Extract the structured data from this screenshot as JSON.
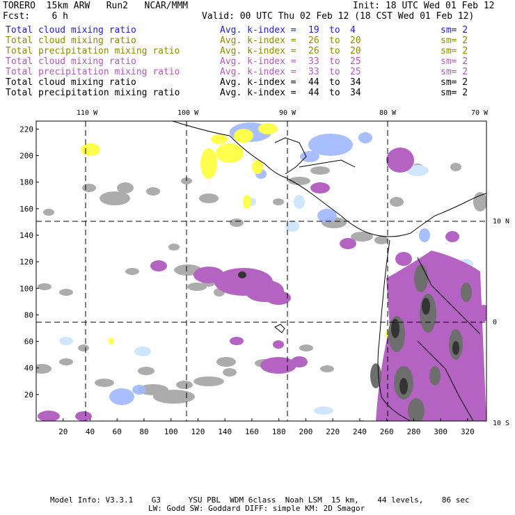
{
  "header": {
    "model_name": "TORERO  15km ARW   Run2   NCAR/MMM",
    "fcst_label": "Fcst:    6 h",
    "init_label": "Init: 18 UTC Wed 01 Feb 12",
    "valid_label": "Valid: 00 UTC Thu 02 Feb 12 (18 CST Wed 01 Feb 12)"
  },
  "legend": [
    {
      "field": "Total cloud mixing ratio",
      "avg": "Avg. k-index =",
      "k1": "19",
      "to": "to",
      "k2": "4",
      "sm": "sm= 2",
      "color": "#1f1fd6"
    },
    {
      "field": "Total cloud mixing ratio",
      "avg": "Avg. k-index =",
      "k1": "26",
      "to": "to",
      "k2": "20",
      "sm": "sm= 2",
      "color": "#8c8c00"
    },
    {
      "field": "Total precipitation mixing ratio",
      "avg": "Avg. k-index =",
      "k1": "26",
      "to": "to",
      "k2": "20",
      "sm": "sm= 2",
      "color": "#8c8c00"
    },
    {
      "field": "Total cloud mixing ratio",
      "avg": "Avg. k-index =",
      "k1": "33",
      "to": "to",
      "k2": "25",
      "sm": "sm= 2",
      "color": "#b05ab8"
    },
    {
      "field": "Total precipitation mixing ratio",
      "avg": "Avg. k-index =",
      "k1": "33",
      "to": "to",
      "k2": "25",
      "sm": "sm= 2",
      "color": "#b05ab8"
    },
    {
      "field": "Total cloud mixing ratio",
      "avg": "Avg. k-index =",
      "k1": "44",
      "to": "to",
      "k2": "34",
      "sm": "sm= 2",
      "color": "#000000"
    },
    {
      "field": "Total precipitation mixing ratio",
      "avg": "Avg. k-index =",
      "k1": "44",
      "to": "to",
      "k2": "34",
      "sm": "sm= 2",
      "color": "#000000"
    }
  ],
  "map": {
    "top_lon_labels": [
      "110 W",
      "100 W",
      "90 W",
      "80 W",
      "70 W"
    ],
    "right_lat_labels": [
      "10 N",
      "0",
      "10 S"
    ],
    "left_y_ticks": [
      "220",
      "200",
      "180",
      "160",
      "140",
      "120",
      "100",
      "80",
      "60",
      "40",
      "20"
    ],
    "bottom_x_ticks": [
      "20",
      "40",
      "60",
      "80",
      "100",
      "120",
      "140",
      "160",
      "180",
      "200",
      "220",
      "240",
      "260",
      "280",
      "300",
      "320"
    ],
    "colors": {
      "blue": "#9fb8ff",
      "lightblue": "#cfe6ff",
      "yellow": "#ffff4d",
      "purple": "#b463c2",
      "gray": "#a8a8a8",
      "dark": "#444444"
    }
  },
  "footer": {
    "line1": "Model Info: V3.3.1    G3      YSU PBL  WDM 6class  Noah LSM  15 km,    44 levels,    86 sec",
    "line2": "LW: Godd SW: Goddard DIFF: simple KM: 2D Smagor"
  }
}
